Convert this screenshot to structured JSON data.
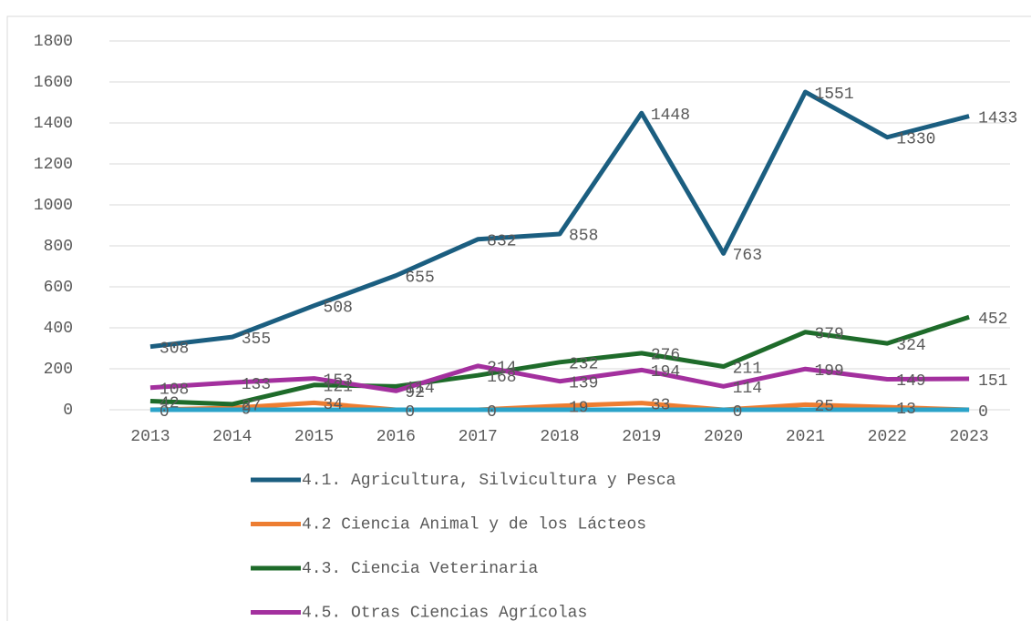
{
  "chart_data": {
    "type": "line",
    "categories": [
      "2013",
      "2014",
      "2015",
      "2016",
      "2017",
      "2018",
      "2019",
      "2020",
      "2021",
      "2022",
      "2023"
    ],
    "series": [
      {
        "name": "4.1. Agricultura, Silvicultura y Pesca",
        "color": "#1b5e80",
        "values": [
          308,
          355,
          508,
          655,
          832,
          858,
          1448,
          763,
          1551,
          1330,
          1433
        ]
      },
      {
        "name": "4.2 Ciencia Animal y de los Lácteos",
        "color": "#ed7d31",
        "values": [
          0,
          9,
          34,
          0,
          0,
          19,
          33,
          0,
          25,
          13,
          0
        ]
      },
      {
        "name": "4.3. Ciencia Veterinaria",
        "color": "#1e6b2a",
        "values": [
          42,
          27,
          121,
          114,
          168,
          232,
          276,
          211,
          379,
          324,
          452
        ]
      },
      {
        "name": "4.5. Otras Ciencias Agrícolas",
        "color": "#a3309e",
        "values": [
          108,
          133,
          153,
          92,
          214,
          139,
          194,
          114,
          199,
          149,
          151
        ]
      },
      {
        "color": "#2aa3c9",
        "values": [
          0,
          0,
          0,
          0,
          0,
          0,
          0,
          0,
          0,
          0,
          0
        ]
      }
    ],
    "ylim": [
      0,
      1800
    ],
    "yticks": [
      0,
      200,
      400,
      600,
      800,
      1000,
      1200,
      1400,
      1600,
      1800
    ],
    "grid": true
  }
}
